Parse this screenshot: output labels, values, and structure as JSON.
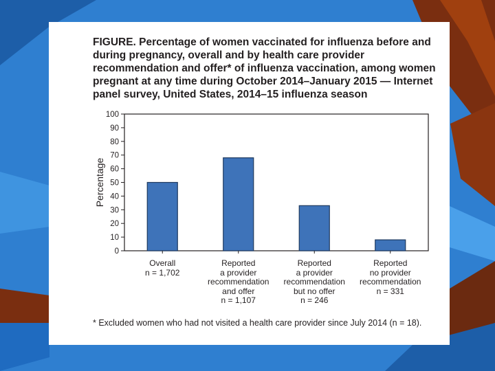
{
  "colors": {
    "background": "#2f7fd0",
    "slide": "#ffffff",
    "bar_fill": "#3e73b9",
    "bar_stroke": "#1f3a5f",
    "text": "#231f20"
  },
  "figure": {
    "title": "FIGURE. Percentage of women vaccinated for influenza before and during pregnancy, overall and by health care provider recommendation and offer* of influenza vaccination, among women pregnant at any time during October 2014–January 2015 — Internet panel survey, United States, 2014–15 influenza season",
    "footnote": "* Excluded women who had not visited a health care provider since July 2014 (n = 18)."
  },
  "chart_data": {
    "type": "bar",
    "title": "",
    "xlabel": "",
    "ylabel": "Percentage",
    "ylim": [
      0,
      100
    ],
    "yticks": [
      0,
      10,
      20,
      30,
      40,
      50,
      60,
      70,
      80,
      90,
      100
    ],
    "grid": false,
    "categories": [
      {
        "lines": [
          "Overall"
        ],
        "n": "n = 1,702"
      },
      {
        "lines": [
          "Reported",
          "a provider",
          "recommendation",
          "and offer"
        ],
        "n": "n = 1,107"
      },
      {
        "lines": [
          "Reported",
          "a provider",
          "recommendation",
          "but no offer"
        ],
        "n": "n = 246"
      },
      {
        "lines": [
          "Reported",
          "no provider",
          "recommendation"
        ],
        "n": "n = 331"
      }
    ],
    "values": [
      50,
      68,
      33,
      8
    ]
  }
}
